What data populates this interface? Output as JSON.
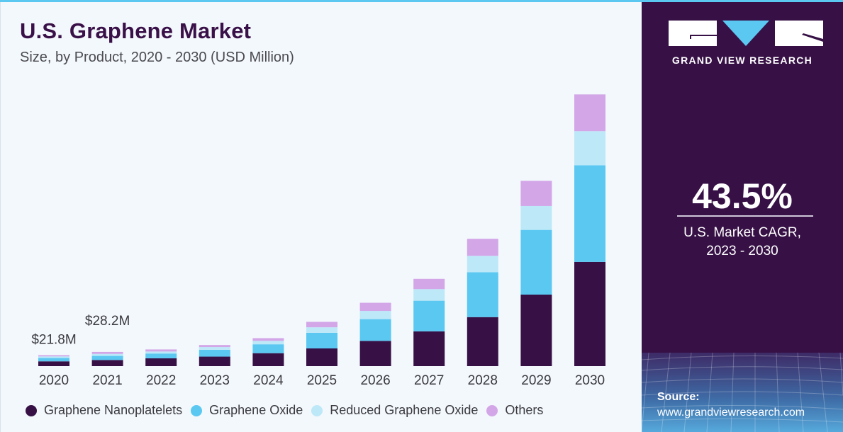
{
  "header": {
    "title": "U.S. Graphene Market",
    "subtitle": "Size, by Product, 2020 - 2030 (USD Million)"
  },
  "sidebar": {
    "brand": "GRAND VIEW RESEARCH",
    "cagr_value": "43.5%",
    "cagr_label_line1": "U.S. Market CAGR,",
    "cagr_label_line2": "2023 - 2030",
    "source_title": "Source:",
    "source_url": "www.grandviewresearch.com"
  },
  "colors": {
    "nanoplatelets": "#371146",
    "oxide": "#5bc8f2",
    "reduced_oxide": "#bde8f8",
    "others": "#d3a6e8"
  },
  "chart_data": {
    "type": "bar",
    "stacked": true,
    "title": "U.S. Graphene Market",
    "subtitle": "Size, by Product, 2020 - 2030 (USD Million)",
    "xlabel": "",
    "ylabel": "",
    "categories": [
      "2020",
      "2021",
      "2022",
      "2023",
      "2024",
      "2025",
      "2026",
      "2027",
      "2028",
      "2029",
      "2030"
    ],
    "ylim": [
      0,
      560
    ],
    "legend_position": "bottom",
    "series": [
      {
        "name": "Graphene Nanoplatelets",
        "color": "#371146",
        "values": [
          9.5,
          12.2,
          15.5,
          18.9,
          25.7,
          35.1,
          50.0,
          68.9,
          97.2,
          141.8,
          206.6
        ]
      },
      {
        "name": "Graphene Oxide",
        "color": "#5bc8f2",
        "values": [
          6.8,
          8.1,
          9.5,
          13.5,
          17.6,
          31.1,
          43.2,
          60.8,
          89.1,
          128.3,
          191.7
        ]
      },
      {
        "name": "Reduced Graphene Oxide",
        "color": "#bde8f8",
        "values": [
          3.0,
          4.0,
          4.0,
          5.4,
          6.8,
          10.8,
          16.2,
          23.0,
          32.4,
          47.3,
          67.5
        ]
      },
      {
        "name": "Others",
        "color": "#d3a6e8",
        "values": [
          2.5,
          3.9,
          4.1,
          4.1,
          5.4,
          10.8,
          16.2,
          20.3,
          33.8,
          50.0,
          72.9
        ]
      }
    ],
    "annotations": [
      {
        "category": "2020",
        "text": "$21.8M"
      },
      {
        "category": "2021",
        "text": "$28.2M"
      }
    ]
  }
}
